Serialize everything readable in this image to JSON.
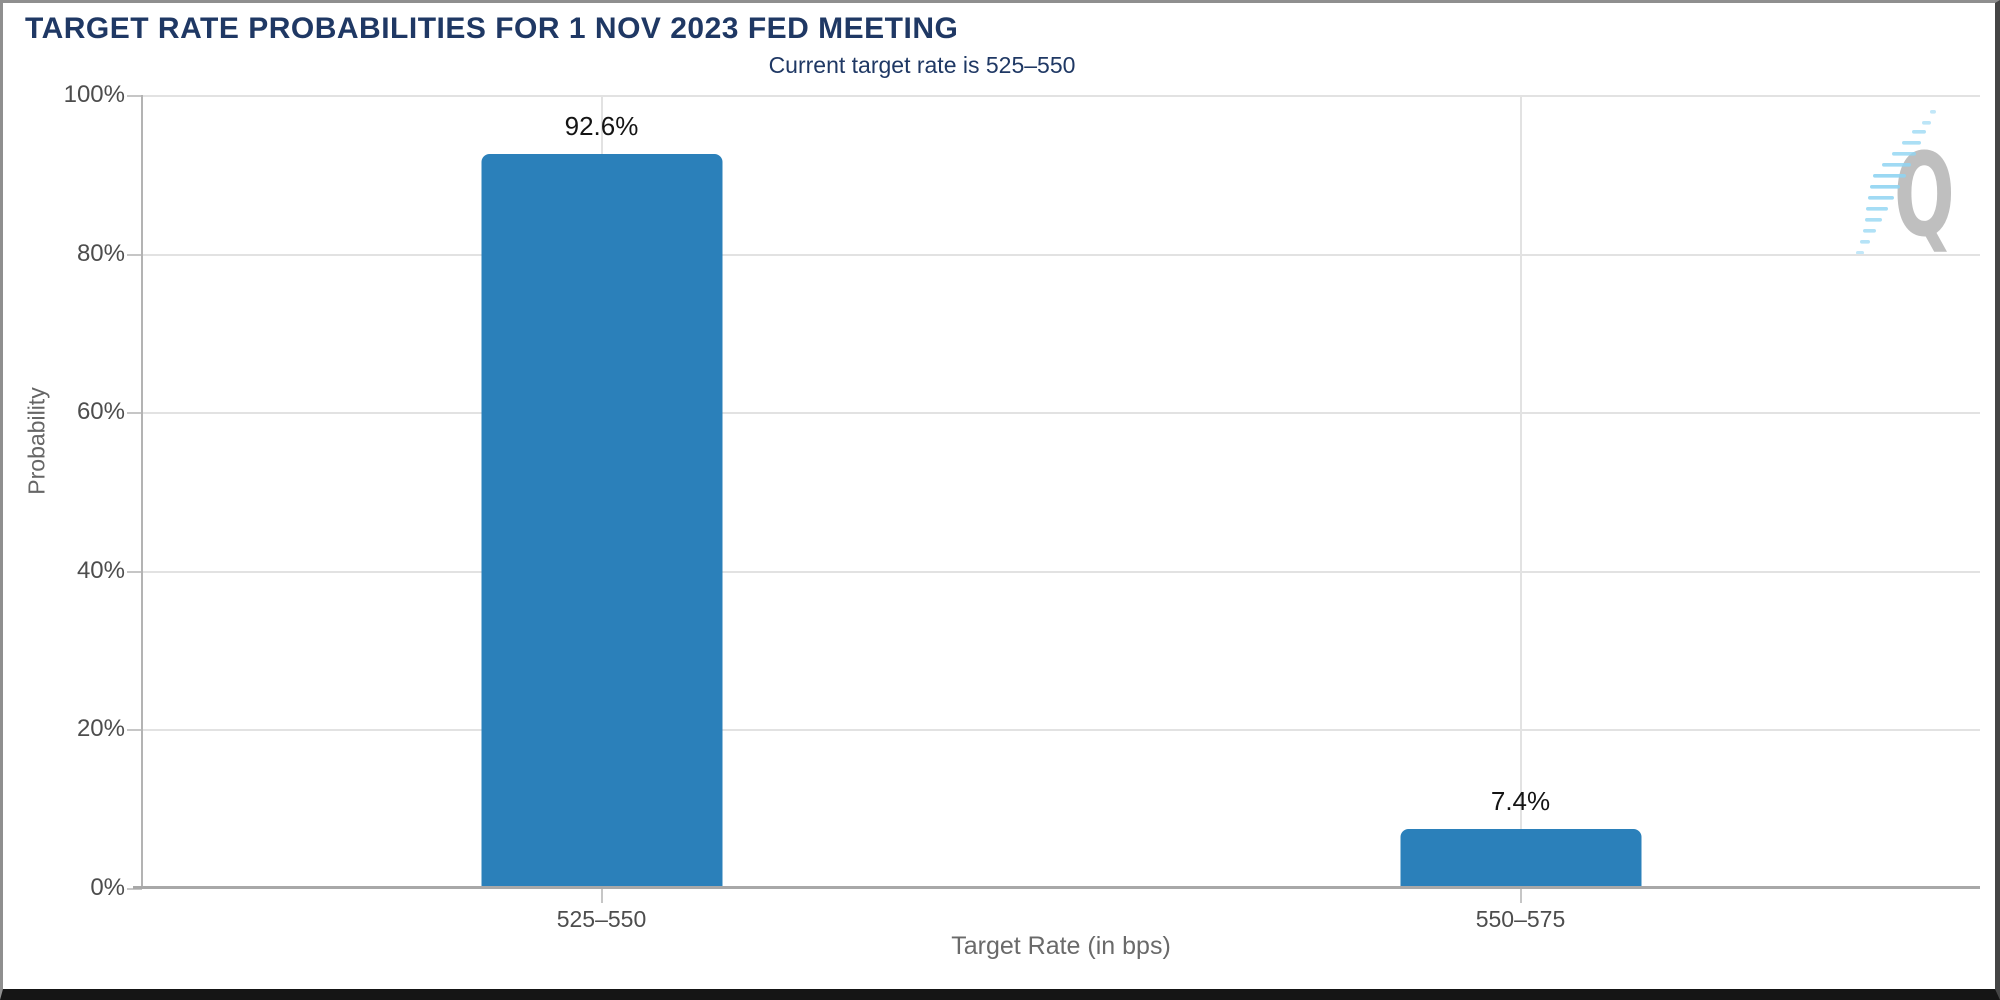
{
  "chart_data": {
    "type": "bar",
    "title": "TARGET RATE PROBABILITIES FOR 1 NOV 2023 FED MEETING",
    "subtitle": "Current target rate is 525–550",
    "categories": [
      "525–550",
      "550–575"
    ],
    "values": [
      92.6,
      7.4
    ],
    "value_labels": [
      "92.6%",
      "7.4%"
    ],
    "xlabel": "Target Rate (in bps)",
    "ylabel": "Probability",
    "ylim": [
      0,
      100
    ],
    "ytick_step": 20,
    "yticks_top_to_bottom": [
      "100%",
      "80%",
      "60%",
      "40%",
      "20%",
      "0%"
    ],
    "grid": true,
    "legend": false,
    "bar_color": "#2b80ba",
    "title_color": "#1f3864",
    "subtitle_color": "#1f3864",
    "watermark_letter": "Q"
  }
}
